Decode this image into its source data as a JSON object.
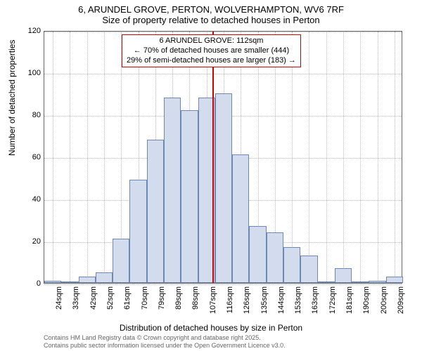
{
  "title_main": "6, ARUNDEL GROVE, PERTON, WOLVERHAMPTON, WV6 7RF",
  "title_sub": "Size of property relative to detached houses in Perton",
  "ylabel": "Number of detached properties",
  "xlabel": "Distribution of detached houses by size in Perton",
  "chart": {
    "type": "histogram",
    "ylim": [
      0,
      120
    ],
    "ytick_step": 20,
    "yticks": [
      0,
      20,
      40,
      60,
      80,
      100,
      120
    ],
    "categories": [
      "24sqm",
      "33sqm",
      "42sqm",
      "52sqm",
      "61sqm",
      "70sqm",
      "79sqm",
      "89sqm",
      "98sqm",
      "107sqm",
      "116sqm",
      "126sqm",
      "135sqm",
      "144sqm",
      "153sqm",
      "163sqm",
      "172sqm",
      "181sqm",
      "190sqm",
      "200sqm",
      "209sqm"
    ],
    "values": [
      1,
      0,
      3,
      5,
      21,
      49,
      68,
      88,
      82,
      88,
      90,
      61,
      27,
      24,
      17,
      13,
      0,
      7,
      0,
      1,
      3
    ],
    "bar_color": "#d2dcec",
    "bar_border": "#6d88b5",
    "grid_color": "#bbbbbb",
    "axis_color": "#666666",
    "background": "#ffffff",
    "bar_width_ratio": 1.0,
    "refline": {
      "x_index": 9.4,
      "color": "#d00000",
      "width": 2
    },
    "annotation": {
      "lines": [
        "6 ARUNDEL GROVE: 112sqm",
        "← 70% of detached houses are smaller (444)",
        "29% of semi-detached houses are larger (183) →"
      ],
      "border_color": "#d00000",
      "background": "#ffffff",
      "fontsize": 11
    },
    "label_fontsize": 12,
    "tick_fontsize": 11,
    "title_fontsize": 13
  },
  "attribution": {
    "line1": "Contains HM Land Registry data © Crown copyright and database right 2025.",
    "line2": "Contains public sector information licensed under the Open Government Licence v3.0."
  }
}
